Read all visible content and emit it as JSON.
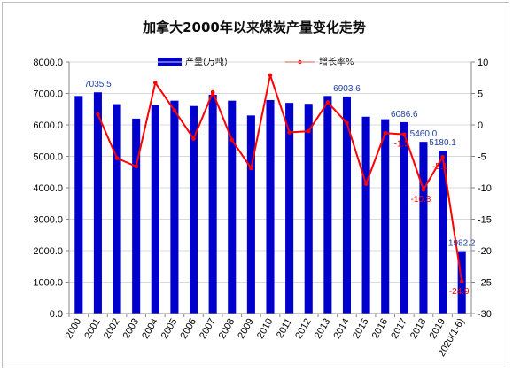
{
  "chart_data": {
    "type": "bar+line",
    "title": "加拿大2000年以来煤炭产量变化走势",
    "categories": [
      "2000",
      "2001",
      "2002",
      "2003",
      "2004",
      "2005",
      "2006",
      "2007",
      "2008",
      "2009",
      "2010",
      "2011",
      "2012",
      "2013",
      "2014",
      "2015",
      "2016",
      "2017",
      "2018",
      "2019",
      "2020(1-6)"
    ],
    "series": [
      {
        "name": "产量(万吨)",
        "type": "bar",
        "axis": "left",
        "color": "#0000cc",
        "values": [
          6920,
          7035.5,
          6660,
          6200,
          6630,
          6770,
          6600,
          6960,
          6770,
          6300,
          6790,
          6700,
          6670,
          6920,
          6903.6,
          6260,
          6180,
          6086.6,
          5460.0,
          5180.1,
          1982.2
        ],
        "labels": [
          "",
          "7035.5",
          "",
          "",
          "",
          "",
          "",
          "",
          "",
          "",
          "",
          "",
          "",
          "",
          "6903.6",
          "",
          "",
          "6086.6",
          "5460.0",
          "5180.1",
          "1982.2"
        ]
      },
      {
        "name": "增长率%",
        "type": "line",
        "axis": "right",
        "color": "#ff0000",
        "values": [
          null,
          1.7,
          -5.3,
          -6.6,
          6.7,
          2.3,
          -2.2,
          5.2,
          -2.4,
          -6.9,
          7.9,
          -1.2,
          -1.0,
          3.6,
          0.3,
          -9.4,
          -1.3,
          -1.5,
          -10.3,
          -5.1,
          -24.9
        ],
        "labels": [
          "",
          "",
          "",
          "",
          "",
          "",
          "",
          "",
          "",
          "",
          "",
          "",
          "",
          "",
          "",
          "",
          "",
          "-1.5",
          "-10.3",
          "-5.1",
          "-24.9"
        ]
      }
    ],
    "y_left": {
      "min": 0,
      "max": 8000,
      "step": 1000,
      "tick_labels": [
        "0.0",
        "1000.0",
        "2000.0",
        "3000.0",
        "4000.0",
        "5000.0",
        "6000.0",
        "7000.0",
        "8000.0"
      ]
    },
    "y_right": {
      "min": -30,
      "max": 10,
      "step": 5,
      "tick_labels": [
        "-30",
        "-25",
        "-20",
        "-15",
        "-10",
        "-5",
        "0",
        "5",
        "10"
      ]
    },
    "grid": true,
    "legend_position": "top-center"
  }
}
